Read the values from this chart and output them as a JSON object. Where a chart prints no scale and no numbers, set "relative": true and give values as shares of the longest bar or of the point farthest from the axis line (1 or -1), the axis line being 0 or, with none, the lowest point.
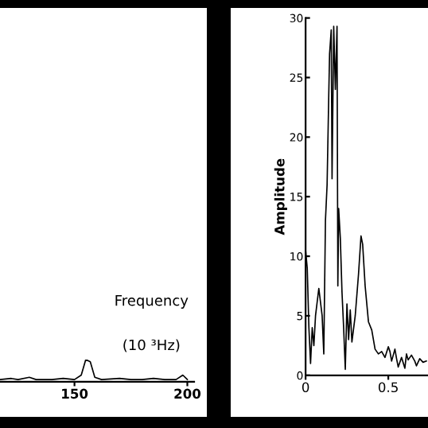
{
  "chart_data": [
    {
      "type": "line",
      "relative": true,
      "x": [
        117,
        122,
        125,
        130,
        133,
        140,
        145,
        150,
        153,
        155,
        157,
        159,
        162,
        170,
        175,
        180,
        185,
        190,
        195,
        198,
        200
      ],
      "series": [
        {
          "color": "#000000",
          "values": [
            0.1,
            0.15,
            0.1,
            0.2,
            0.1,
            0.1,
            0.15,
            0.1,
            0.3,
            1.0,
            0.9,
            0.2,
            0.1,
            0.15,
            0.1,
            0.1,
            0.15,
            0.1,
            0.1,
            0.3,
            0.1
          ]
        }
      ],
      "xlim": [
        117,
        203
      ],
      "xticks": [
        150,
        200
      ],
      "tick_labels": "x",
      "annotations": [
        "Frequency",
        "(10 ³Hz)"
      ]
    },
    {
      "type": "line",
      "ylabel": "Amplitude",
      "x": [
        0,
        0.01,
        0.02,
        0.03,
        0.04,
        0.05,
        0.06,
        0.08,
        0.1,
        0.11,
        0.12,
        0.13,
        0.14,
        0.145,
        0.155,
        0.16,
        0.17,
        0.18,
        0.19,
        0.195,
        0.2,
        0.21,
        0.22,
        0.23,
        0.24,
        0.25,
        0.26,
        0.27,
        0.28,
        0.3,
        0.32,
        0.335,
        0.345,
        0.36,
        0.38,
        0.4,
        0.42,
        0.44,
        0.46,
        0.48,
        0.5,
        0.51,
        0.52,
        0.54,
        0.55,
        0.56,
        0.58,
        0.6,
        0.61,
        0.62,
        0.64,
        0.66,
        0.67,
        0.69,
        0.71,
        0.73
      ],
      "series": [
        {
          "color": "#000000",
          "values": [
            10.5,
            9,
            4,
            1,
            4,
            2.5,
            5,
            7.3,
            5,
            1.8,
            13,
            16,
            23.5,
            27,
            29,
            16.5,
            29.3,
            24,
            29.3,
            7.5,
            14,
            11.5,
            7,
            4,
            0.5,
            6,
            3,
            5.5,
            2.8,
            5,
            8.5,
            11.7,
            11,
            7.5,
            4.5,
            3.8,
            2.2,
            1.8,
            2,
            1.5,
            2.4,
            2,
            1.2,
            2.2,
            1.4,
            0.7,
            1.5,
            0.6,
            1.8,
            1.3,
            1.7,
            1.2,
            0.8,
            1.4,
            1.1,
            1.2
          ]
        }
      ],
      "xlim": [
        0,
        0.74
      ],
      "xticks": [
        0,
        0.5
      ],
      "ylim": [
        0,
        30
      ],
      "yticks": [
        0,
        5,
        10,
        15,
        20,
        25,
        30
      ]
    }
  ]
}
